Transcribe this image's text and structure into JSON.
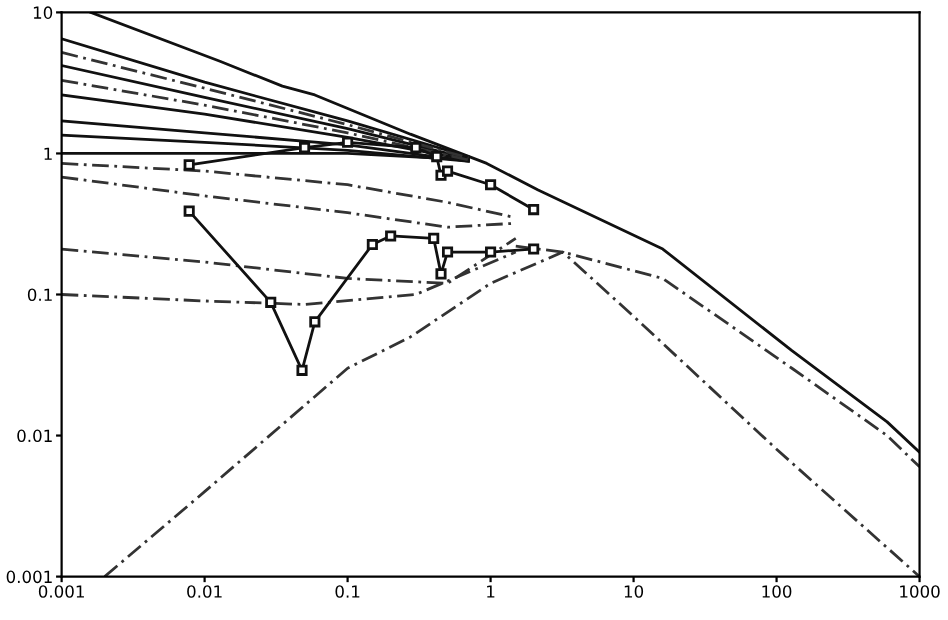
{
  "chart_data": {
    "type": "line",
    "log": "xy",
    "xlim": [
      0.001,
      1000
    ],
    "ylim": [
      0.001,
      10
    ],
    "xticks": [
      0.001,
      0.01,
      0.1,
      1,
      10,
      100,
      1000
    ],
    "yticks": [
      0.001,
      0.01,
      0.1,
      1,
      10
    ],
    "grid": false,
    "series": [
      {
        "color": "#111111",
        "line_style": "solid",
        "marker": "none",
        "x": [
          0.0016,
          0.0128,
          0.035,
          0.059,
          0.275,
          0.94,
          2.15,
          16,
          128,
          593,
          1000
        ],
        "values": [
          10,
          4.5,
          3.0,
          2.6,
          1.37,
          0.85,
          0.55,
          0.21,
          0.04,
          0.0125,
          0.0076
        ]
      },
      {
        "color": "#111111",
        "line_style": "solid",
        "marker": "none",
        "x": [
          0.001,
          0.01,
          0.1,
          0.7
        ],
        "values": [
          6.5,
          3.2,
          1.7,
          0.95
        ]
      },
      {
        "color": "#111111",
        "line_style": "solid",
        "marker": "none",
        "x": [
          0.001,
          0.01,
          0.1,
          0.7
        ],
        "values": [
          4.2,
          2.5,
          1.5,
          0.92
        ]
      },
      {
        "color": "#111111",
        "line_style": "solid",
        "marker": "none",
        "x": [
          0.001,
          0.01,
          0.1,
          0.7
        ],
        "values": [
          2.6,
          1.9,
          1.3,
          0.9
        ]
      },
      {
        "color": "#111111",
        "line_style": "solid",
        "marker": "none",
        "x": [
          0.001,
          0.01,
          0.1,
          0.7
        ],
        "values": [
          1.7,
          1.4,
          1.15,
          0.88
        ]
      },
      {
        "color": "#111111",
        "line_style": "solid",
        "marker": "none",
        "x": [
          0.001,
          0.01,
          0.1,
          0.7
        ],
        "values": [
          1.35,
          1.2,
          1.05,
          0.88
        ]
      },
      {
        "color": "#111111",
        "line_style": "solid",
        "marker": "none",
        "x": [
          0.001,
          0.01,
          0.1,
          0.7
        ],
        "values": [
          1.0,
          1.0,
          1.0,
          0.9
        ]
      },
      {
        "color": "#333333",
        "line_style": "dashed",
        "marker": "none",
        "x": [
          0.001,
          0.01,
          0.1,
          0.7
        ],
        "values": [
          5.2,
          2.9,
          1.6,
          0.93
        ]
      },
      {
        "color": "#333333",
        "line_style": "dashed",
        "marker": "none",
        "x": [
          0.001,
          0.01,
          0.1,
          0.7
        ],
        "values": [
          3.3,
          2.2,
          1.4,
          0.9
        ]
      },
      {
        "color": "#333333",
        "line_style": "dashed",
        "marker": "none",
        "x": [
          0.001,
          0.01,
          0.1,
          0.5,
          1.5
        ],
        "values": [
          0.85,
          0.75,
          0.6,
          0.45,
          0.35
        ]
      },
      {
        "color": "#333333",
        "line_style": "dashed",
        "marker": "none",
        "x": [
          0.001,
          0.01,
          0.1,
          0.5,
          1.5
        ],
        "values": [
          0.68,
          0.5,
          0.38,
          0.3,
          0.32
        ]
      },
      {
        "color": "#333333",
        "line_style": "dashed",
        "marker": "none",
        "x": [
          0.001,
          0.01,
          0.1,
          0.5,
          1.5
        ],
        "values": [
          0.21,
          0.17,
          0.13,
          0.12,
          0.25
        ]
      },
      {
        "color": "#333333",
        "line_style": "dashed",
        "marker": "none",
        "x": [
          0.001,
          0.01,
          0.05,
          0.3,
          1.5
        ],
        "values": [
          0.1,
          0.09,
          0.085,
          0.1,
          0.2
        ]
      },
      {
        "color": "#333333",
        "line_style": "dashed",
        "marker": "none",
        "x": [
          0.002,
          0.01,
          0.1,
          0.275,
          1,
          3.2,
          10,
          100,
          1000
        ],
        "values": [
          0.001,
          0.004,
          0.03,
          0.05,
          0.12,
          0.2,
          0.07,
          0.008,
          0.001
        ]
      },
      {
        "color": "#333333",
        "line_style": "dashed",
        "marker": "none",
        "x": [
          1.5,
          3.2,
          16,
          128,
          593,
          1000
        ],
        "values": [
          0.22,
          0.2,
          0.13,
          0.03,
          0.01,
          0.006
        ]
      },
      {
        "color": "#111111",
        "line_style": "solid",
        "marker": "square",
        "x": [
          0.0078,
          0.05,
          0.1,
          0.3,
          0.42,
          0.45,
          0.5,
          1,
          2
        ],
        "values": [
          0.83,
          1.1,
          1.2,
          1.1,
          0.95,
          0.7,
          0.75,
          0.6,
          0.4
        ]
      },
      {
        "color": "#111111",
        "line_style": "solid",
        "marker": "square",
        "x": [
          0.0078,
          0.029,
          0.048,
          0.059,
          0.149,
          0.2,
          0.4,
          0.45,
          0.5,
          1,
          2
        ],
        "values": [
          0.39,
          0.088,
          0.029,
          0.064,
          0.226,
          0.26,
          0.25,
          0.14,
          0.2,
          0.2,
          0.21
        ]
      }
    ]
  }
}
